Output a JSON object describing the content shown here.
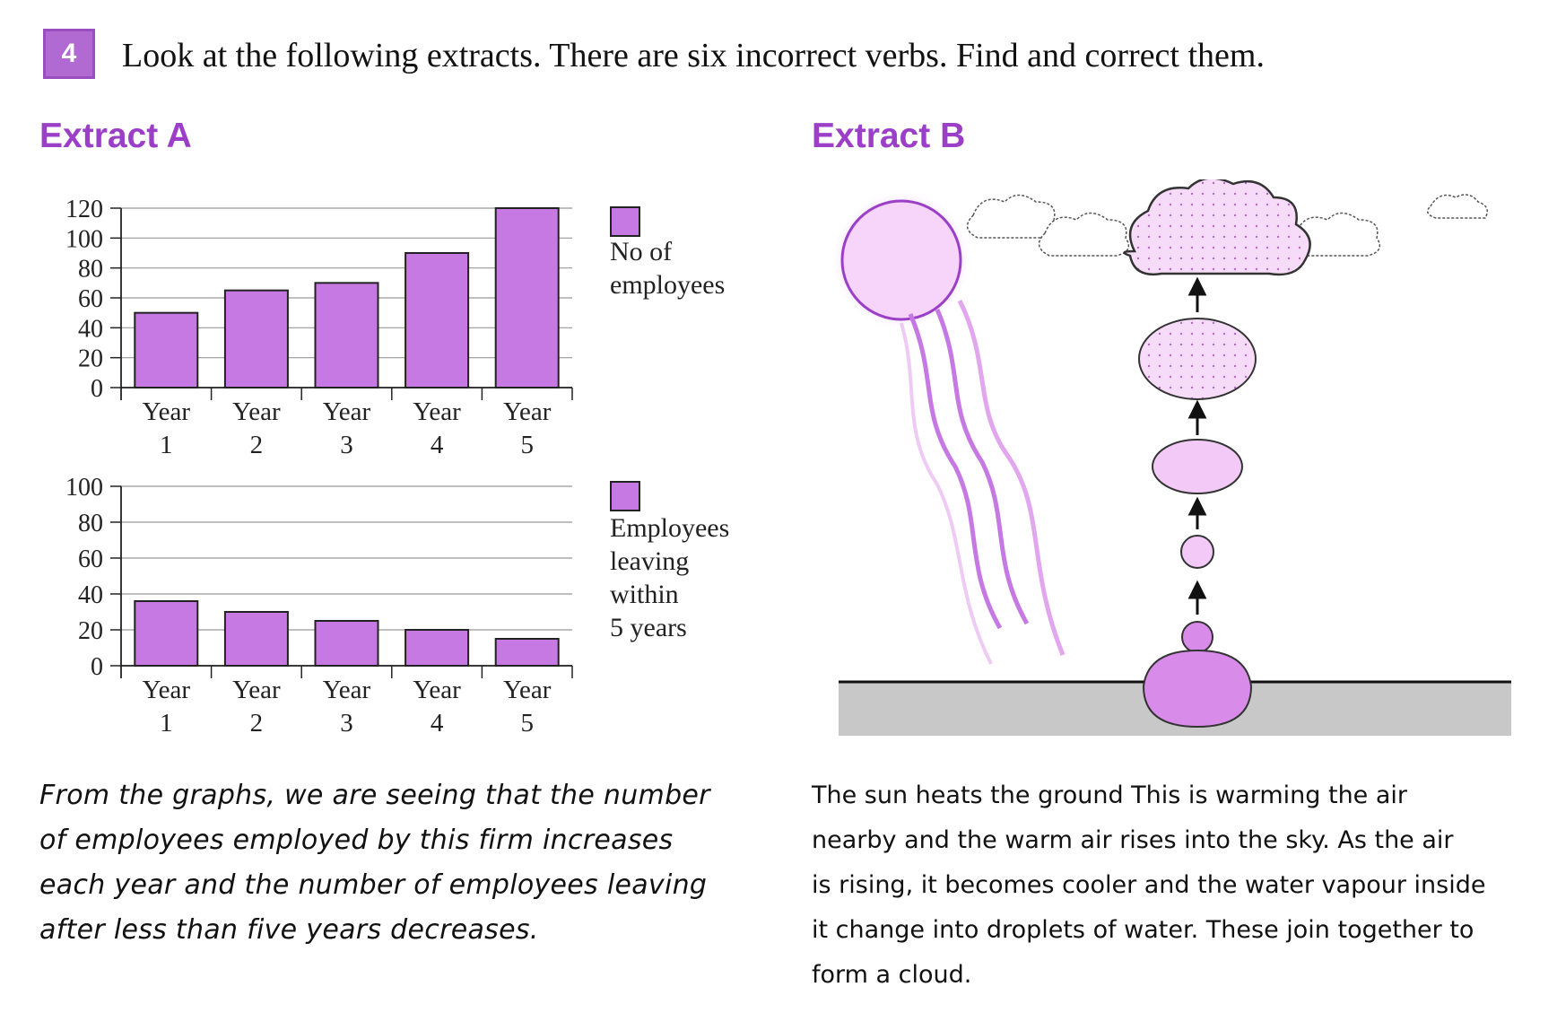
{
  "task": {
    "number": "4",
    "instruction": "Look at the following extracts. There are six incorrect verbs. Find and correct them."
  },
  "extract_a": {
    "title": "Extract A",
    "text": "From the graphs, we are seeing that the number\nof employees employed by this firm increases\neach year and the number of employees leaving\nafter less than five years decreases."
  },
  "extract_b": {
    "title": "Extract B",
    "text": "The sun heats the ground This is warming the air\nnearby and the warm air rises into the sky. As the air\nis rising, it becomes cooler and the water vapour inside\nit change into droplets of water. These join together to\nform a cloud."
  },
  "colors": {
    "accent": "#9b3fc8",
    "bar_fill": "#c779e3",
    "badge": "#b06ad2",
    "ground": "#c8c8c8"
  },
  "chart_data": [
    {
      "type": "bar",
      "categories": [
        "Year 1",
        "Year 2",
        "Year 3",
        "Year 4",
        "Year 5"
      ],
      "tick_labels": [
        [
          "Year",
          "1"
        ],
        [
          "Year",
          "2"
        ],
        [
          "Year",
          "3"
        ],
        [
          "Year",
          "4"
        ],
        [
          "Year",
          "5"
        ]
      ],
      "series": [
        {
          "name": "No of employees",
          "values": [
            50,
            65,
            70,
            90,
            120
          ]
        }
      ],
      "legend": [
        "No of",
        "employees"
      ],
      "ylim": [
        0,
        120
      ],
      "yticks": [
        0,
        20,
        40,
        60,
        80,
        100,
        120
      ],
      "grid": true,
      "legend_position": "right"
    },
    {
      "type": "bar",
      "categories": [
        "Year 1",
        "Year 2",
        "Year 3",
        "Year 4",
        "Year 5"
      ],
      "tick_labels": [
        [
          "Year",
          "1"
        ],
        [
          "Year",
          "2"
        ],
        [
          "Year",
          "3"
        ],
        [
          "Year",
          "4"
        ],
        [
          "Year",
          "5"
        ]
      ],
      "series": [
        {
          "name": "Employees leaving within 5 years",
          "values": [
            36,
            30,
            25,
            20,
            15
          ]
        }
      ],
      "legend": [
        "Employees",
        "leaving",
        "within",
        "5 years"
      ],
      "ylim": [
        0,
        100
      ],
      "yticks": [
        0,
        20,
        40,
        60,
        80,
        100
      ],
      "grid": true,
      "legend_position": "right"
    }
  ],
  "diagram": {
    "icons": [
      "sun-icon",
      "cloud-icon",
      "rising-air-bubble-icon",
      "ground-icon",
      "arrow-up-icon"
    ]
  }
}
